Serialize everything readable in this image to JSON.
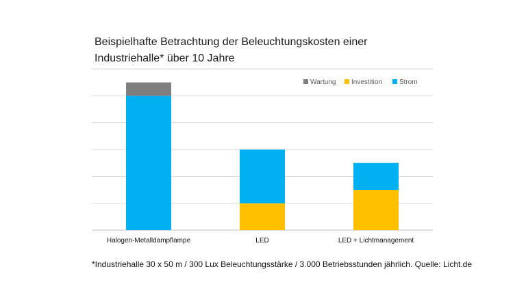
{
  "title_lines": [
    "Beispielhafte Betrachtung der Beleuchtungskosten einer",
    "Industriehalle* über 10 Jahre"
  ],
  "footnote": "*Industriehalle  30 x 50 m / 300 Lux Beleuchtungsstärke  / 3.000 Betriebsstunden  jährlich. Quelle: Licht.de",
  "colors": {
    "Wartung": "#7f7f7f",
    "Investition": "#ffc000",
    "Strom": "#00b0f0",
    "grid": "#d9d9d9",
    "axis": "#bfbfbf"
  },
  "chart_data": {
    "type": "bar",
    "stacked": true,
    "title": "Beispielhafte Betrachtung der Beleuchtungskosten einer Industriehalle* über 10 Jahre",
    "categories": [
      "Halogen-Metalldampflampe",
      "LED",
      "LED + Lichtmanagement"
    ],
    "series": [
      {
        "name": "Investition",
        "values": [
          0,
          1,
          1.5
        ]
      },
      {
        "name": "Strom",
        "values": [
          5,
          2,
          1
        ]
      },
      {
        "name": "Wartung",
        "values": [
          0.5,
          0,
          0
        ]
      }
    ],
    "legend_order": [
      "Wartung",
      "Investition",
      "Strom"
    ],
    "legend_position": "top-right",
    "ylim": [
      0,
      6
    ],
    "gridlines": true,
    "y_tick_labels_shown": false
  }
}
